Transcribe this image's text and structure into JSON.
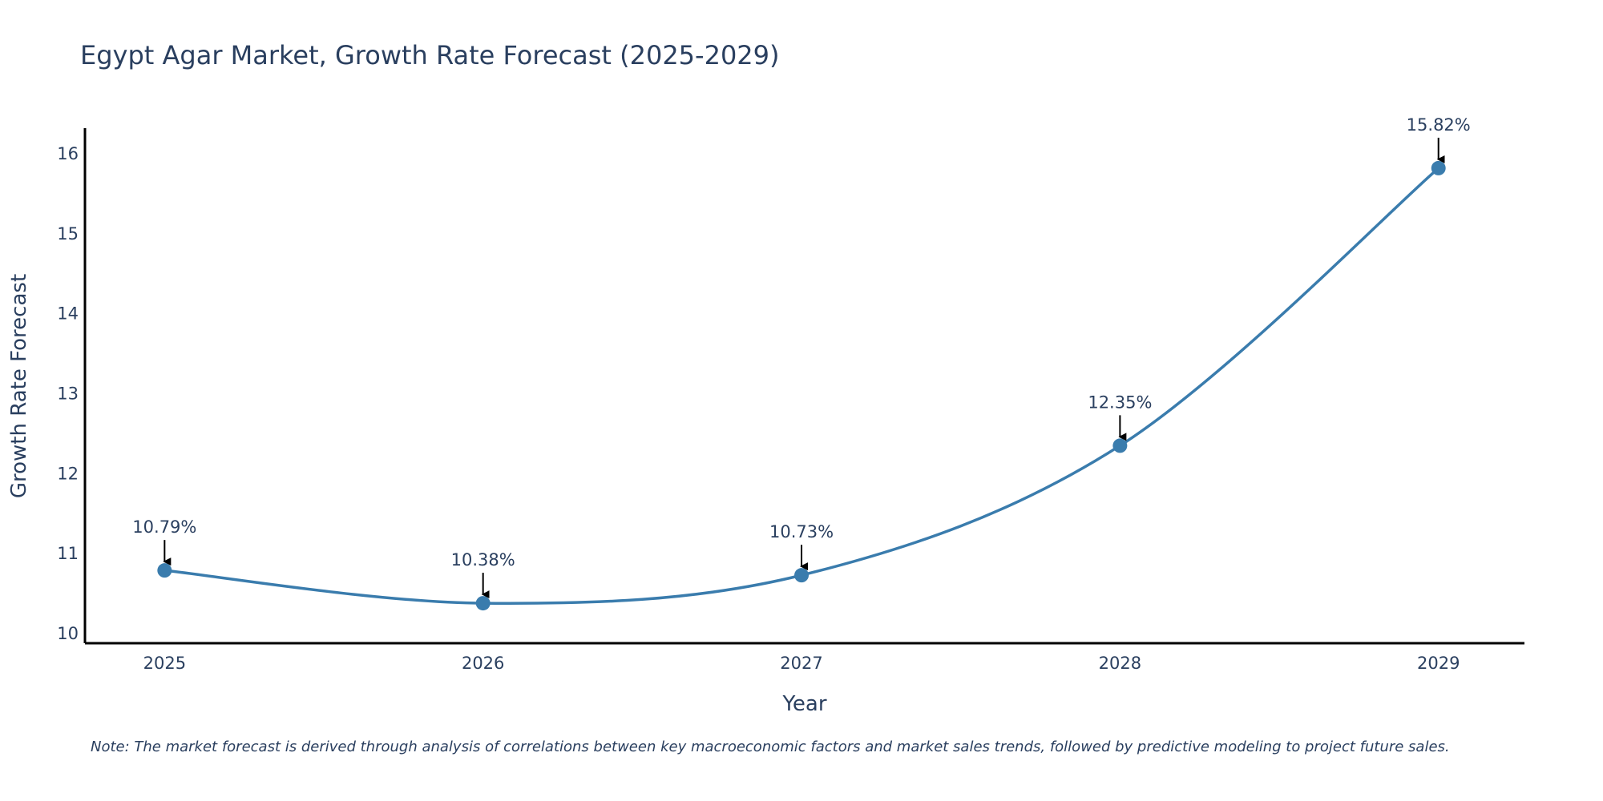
{
  "chart_data": {
    "type": "line",
    "title": "Egypt Agar Market, Growth Rate Forecast (2025-2029)",
    "xlabel": "Year",
    "ylabel": "Growth Rate Forecast",
    "x": [
      "2025",
      "2026",
      "2027",
      "2028",
      "2029"
    ],
    "series": [
      {
        "name": "Growth Rate Forecast",
        "values": [
          10.79,
          10.38,
          10.73,
          12.35,
          15.82
        ],
        "labels": [
          "10.79%",
          "10.38%",
          "10.73%",
          "12.35%",
          "15.82%"
        ]
      }
    ],
    "yticks": [
      10,
      11,
      12,
      13,
      14,
      15,
      16
    ],
    "ylim": [
      9.88,
      16.32
    ],
    "xlim": [
      2024.75,
      2029.27
    ],
    "grid": false,
    "line_shape": "spline",
    "color": "#3a7cad",
    "note": "Note: The market forecast is derived through analysis of correlations between key macroeconomic factors and market sales trends, followed by predictive modeling to project future sales."
  }
}
